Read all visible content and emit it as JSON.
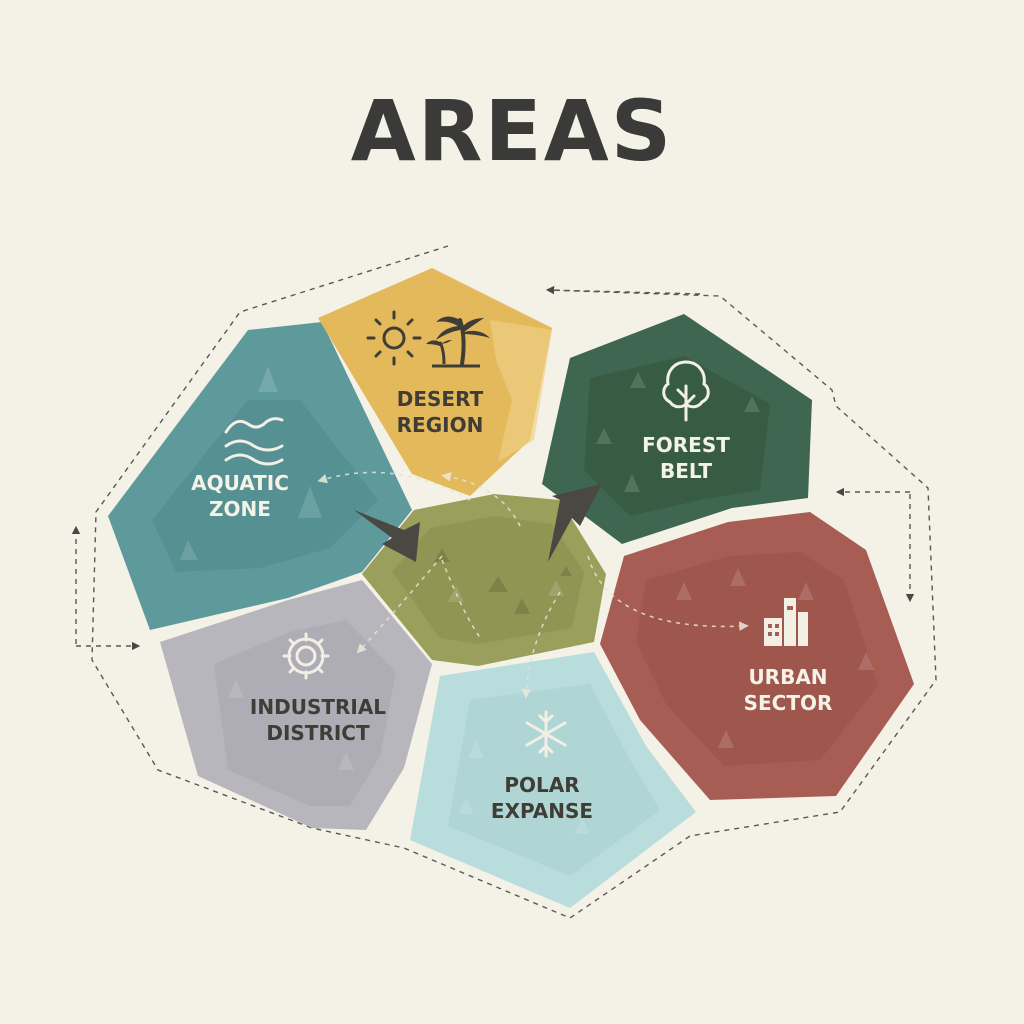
{
  "title": "AREAS",
  "regions": {
    "aquatic": {
      "line1": "AQUATIC",
      "line2": "ZONE",
      "icon": "waves-icon",
      "color": "#5e9a9c"
    },
    "desert": {
      "line1": "DESERT",
      "line2": "REGION",
      "icon": "sun-palm-icon",
      "color": "#e3b95c"
    },
    "forest": {
      "line1": "FOREST",
      "line2": "BELT",
      "icon": "tree-icon",
      "color": "#3f6650"
    },
    "center": {
      "line1": "",
      "line2": "",
      "icon": "",
      "color": "#9a9f5c"
    },
    "industrial": {
      "line1": "INDUSTRIAL",
      "line2": "DISTRICT",
      "icon": "gear-icon",
      "color": "#b8b6bd"
    },
    "polar": {
      "line1": "POLAR",
      "line2": "EXPANSE",
      "icon": "snowflake-icon",
      "color": "#b9dcdc"
    },
    "urban": {
      "line1": "URBAN",
      "line2": "SECTOR",
      "icon": "buildings-icon",
      "color": "#a85d54"
    }
  }
}
